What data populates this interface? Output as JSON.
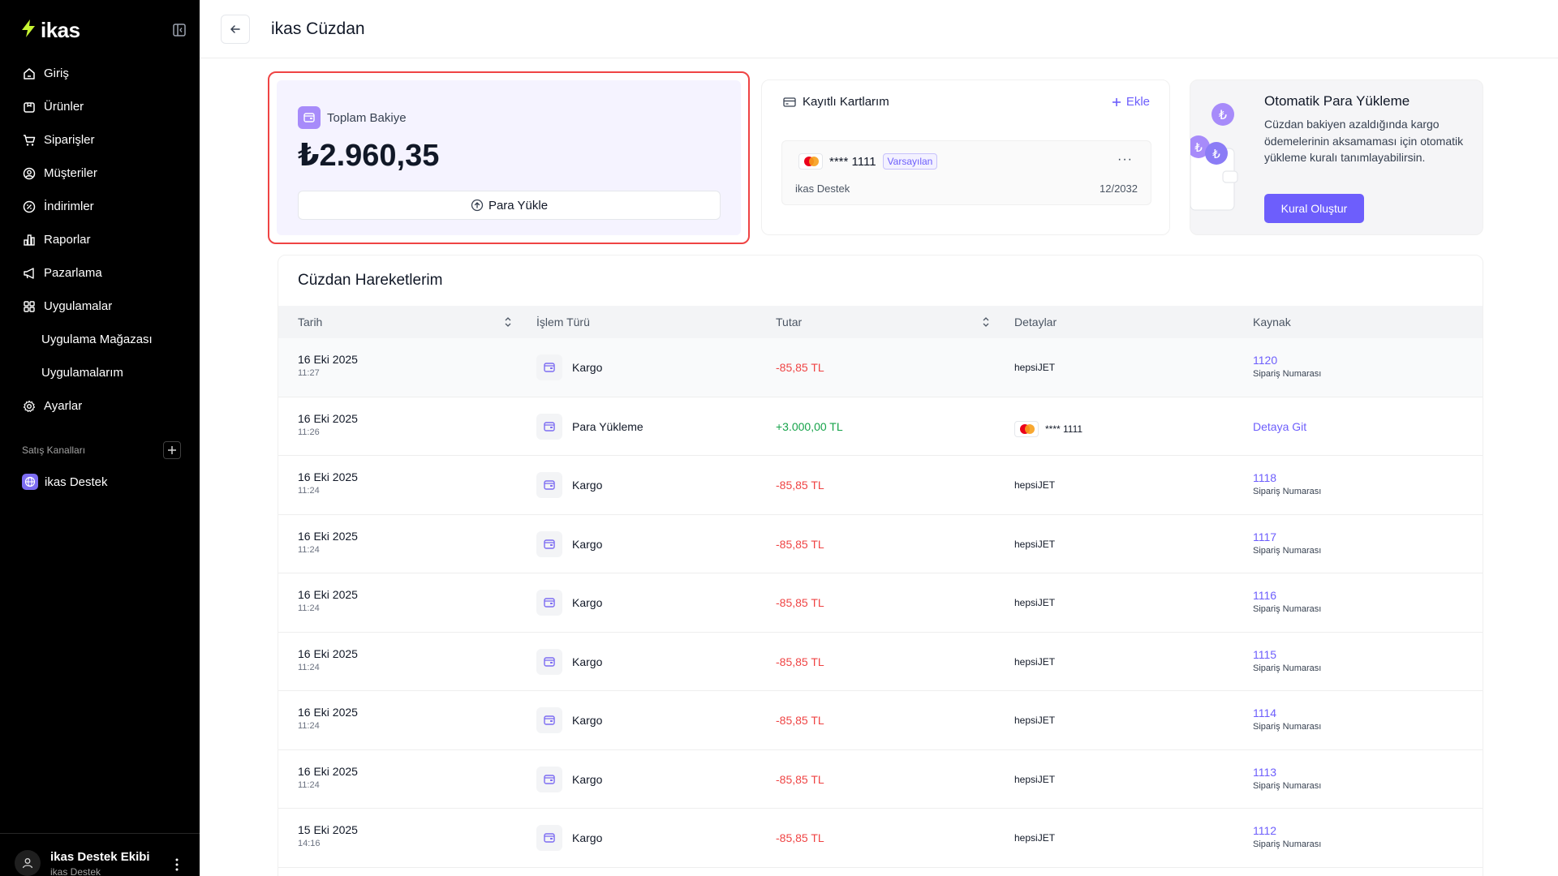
{
  "app": {
    "logo_text": "ikas"
  },
  "sidebar": {
    "items": [
      {
        "label": "Giriş",
        "icon": "home-icon"
      },
      {
        "label": "Ürünler",
        "icon": "box-icon"
      },
      {
        "label": "Siparişler",
        "icon": "cart-icon"
      },
      {
        "label": "Müşteriler",
        "icon": "user-circle-icon"
      },
      {
        "label": "İndirimler",
        "icon": "percent-icon"
      },
      {
        "label": "Raporlar",
        "icon": "chart-icon"
      },
      {
        "label": "Pazarlama",
        "icon": "megaphone-icon"
      },
      {
        "label": "Uygulamalar",
        "icon": "grid-icon"
      },
      {
        "label": "Uygulama Mağazası",
        "icon": ""
      },
      {
        "label": "Uygulamalarım",
        "icon": ""
      },
      {
        "label": "Ayarlar",
        "icon": "gear-icon"
      }
    ],
    "channels_label": "Satış Kanalları",
    "channel": "ikas Destek",
    "user": {
      "name": "ikas Destek Ekibi",
      "sub": "ikas Destek"
    }
  },
  "header": {
    "title": "ikas Cüzdan"
  },
  "balance": {
    "label": "Toplam Bakiye",
    "amount": "₺2.960,35",
    "load_button": "Para Yükle"
  },
  "cards": {
    "title": "Kayıtlı Kartlarım",
    "add_label": "Ekle",
    "card": {
      "number": "**** 1111",
      "badge": "Varsayılan",
      "holder": "ikas Destek",
      "expiry": "12/2032",
      "more": "···"
    }
  },
  "auto_reload": {
    "title": "Otomatik Para Yükleme",
    "description": "Cüzdan bakiyen azaldığında kargo ödemelerinin aksamaması için otomatik yükleme kuralı tanımlayabilirsin.",
    "button": "Kural Oluştur"
  },
  "transactions": {
    "title": "Cüzdan Hareketlerim",
    "columns": [
      "Tarih",
      "İşlem Türü",
      "Tutar",
      "Detaylar",
      "Kaynak"
    ],
    "rows": [
      {
        "date": "16 Eki 2025",
        "time": "11:27",
        "type": "Kargo",
        "amount": "-85,85 TL",
        "sign": "neg",
        "detail": "hepsiJET",
        "source": "1120",
        "source_sub": "Sipariş Numarası"
      },
      {
        "date": "16 Eki 2025",
        "time": "11:26",
        "type": "Para Yükleme",
        "amount": "+3.000,00 TL",
        "sign": "pos",
        "detail": "**** 1111",
        "detail_card": true,
        "source": "Detaya Git",
        "source_sub": ""
      },
      {
        "date": "16 Eki 2025",
        "time": "11:24",
        "type": "Kargo",
        "amount": "-85,85 TL",
        "sign": "neg",
        "detail": "hepsiJET",
        "source": "1118",
        "source_sub": "Sipariş Numarası"
      },
      {
        "date": "16 Eki 2025",
        "time": "11:24",
        "type": "Kargo",
        "amount": "-85,85 TL",
        "sign": "neg",
        "detail": "hepsiJET",
        "source": "1117",
        "source_sub": "Sipariş Numarası"
      },
      {
        "date": "16 Eki 2025",
        "time": "11:24",
        "type": "Kargo",
        "amount": "-85,85 TL",
        "sign": "neg",
        "detail": "hepsiJET",
        "source": "1116",
        "source_sub": "Sipariş Numarası"
      },
      {
        "date": "16 Eki 2025",
        "time": "11:24",
        "type": "Kargo",
        "amount": "-85,85 TL",
        "sign": "neg",
        "detail": "hepsiJET",
        "source": "1115",
        "source_sub": "Sipariş Numarası"
      },
      {
        "date": "16 Eki 2025",
        "time": "11:24",
        "type": "Kargo",
        "amount": "-85,85 TL",
        "sign": "neg",
        "detail": "hepsiJET",
        "source": "1114",
        "source_sub": "Sipariş Numarası"
      },
      {
        "date": "16 Eki 2025",
        "time": "11:24",
        "type": "Kargo",
        "amount": "-85,85 TL",
        "sign": "neg",
        "detail": "hepsiJET",
        "source": "1113",
        "source_sub": "Sipariş Numarası"
      },
      {
        "date": "15 Eki 2025",
        "time": "14:16",
        "type": "Kargo",
        "amount": "-85,85 TL",
        "sign": "neg",
        "detail": "hepsiJET",
        "source": "1112",
        "source_sub": "Sipariş Numarası"
      }
    ]
  },
  "colors": {
    "accent": "#6d5efc",
    "negative": "#ef4444",
    "positive": "#16a34a",
    "highlight_border": "#ef4444"
  }
}
